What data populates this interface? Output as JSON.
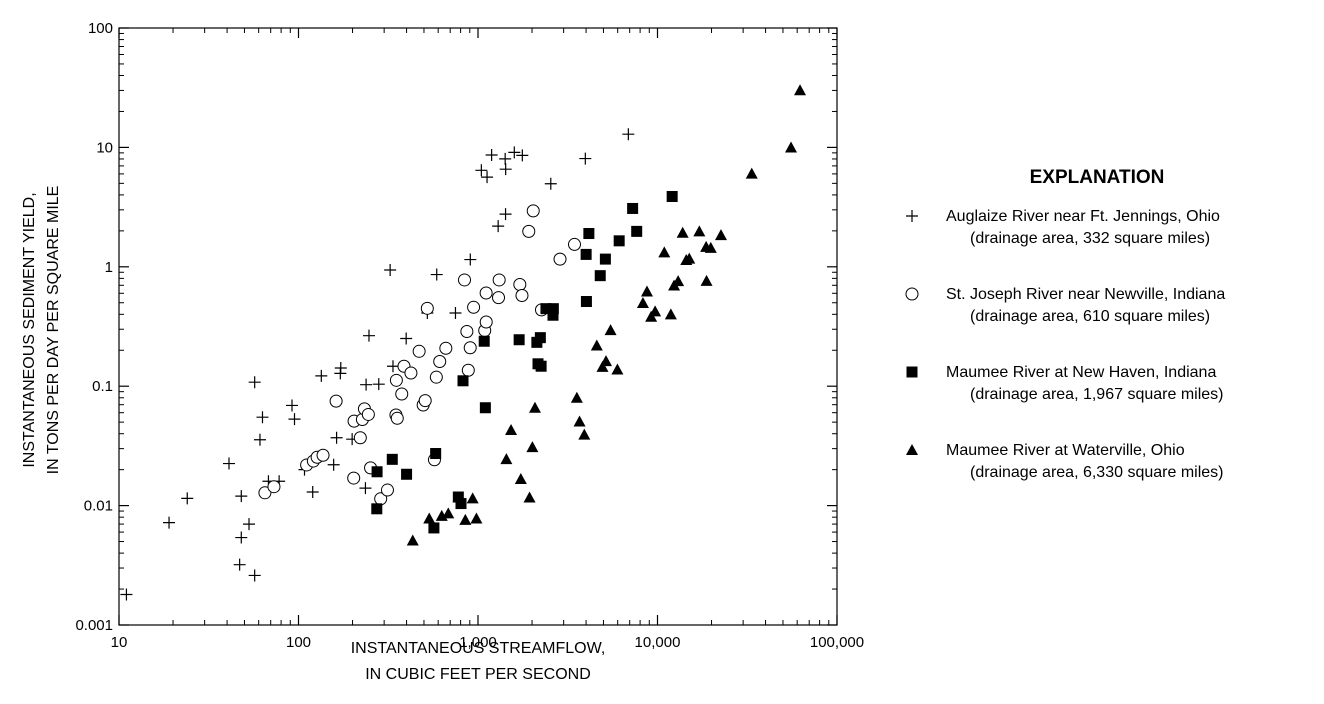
{
  "chart_data": {
    "type": "scatter",
    "xscale": "log",
    "yscale": "log",
    "xlim": [
      10,
      100000
    ],
    "ylim": [
      0.001,
      100
    ],
    "grid": false,
    "xlabel": [
      "INSTANTANEOUS STREAMFLOW,",
      "IN CUBIC FEET PER SECOND"
    ],
    "ylabel": [
      "INSTANTANEOUS SEDIMENT YIELD,",
      "IN TONS PER DAY PER SQUARE MILE"
    ],
    "xticks": [
      10,
      100,
      1000,
      10000,
      100000
    ],
    "xtick_labels": [
      "10",
      "100",
      "1,000",
      "10,000",
      "100,000"
    ],
    "yticks": [
      0.001,
      0.01,
      0.1,
      1,
      10,
      100
    ],
    "ytick_labels": [
      "0.001",
      "0.01",
      "0.1",
      "1",
      "10",
      "100"
    ],
    "legend_title": "EXPLANATION",
    "legend_position": "right",
    "series": [
      {
        "name": "Auglaize River near Ft. Jennings, Ohio",
        "subtitle": "(drainage area, 332 square miles)",
        "marker": "plus",
        "points": [
          [
            11,
            0.0018
          ],
          [
            19,
            0.0072
          ],
          [
            24,
            0.0115
          ],
          [
            41,
            0.0225
          ],
          [
            47,
            0.0032
          ],
          [
            48,
            0.0054
          ],
          [
            48,
            0.012
          ],
          [
            53,
            0.007
          ],
          [
            57,
            0.0026
          ],
          [
            57,
            0.108
          ],
          [
            61,
            0.0356
          ],
          [
            63,
            0.055
          ],
          [
            68,
            0.016
          ],
          [
            78,
            0.016
          ],
          [
            92,
            0.069
          ],
          [
            95,
            0.053
          ],
          [
            108,
            0.02
          ],
          [
            120,
            0.013
          ],
          [
            134,
            0.122
          ],
          [
            157,
            0.022
          ],
          [
            163,
            0.037
          ],
          [
            171,
            0.128
          ],
          [
            172,
            0.142
          ],
          [
            199,
            0.036
          ],
          [
            236,
            0.014
          ],
          [
            238,
            0.103
          ],
          [
            247,
            0.265
          ],
          [
            280,
            0.104
          ],
          [
            324,
            0.94
          ],
          [
            336,
            0.147
          ],
          [
            352,
            0.054
          ],
          [
            398,
            0.251
          ],
          [
            522,
            0.41
          ],
          [
            589,
            0.861
          ],
          [
            749,
            0.41
          ],
          [
            906,
            1.15
          ],
          [
            1044,
            6.43
          ],
          [
            1123,
            5.64
          ],
          [
            1191,
            8.64
          ],
          [
            1295,
            2.19
          ],
          [
            1417,
            8.01
          ],
          [
            1424,
            2.76
          ],
          [
            1426,
            6.57
          ],
          [
            1593,
            9.09
          ],
          [
            1766,
            8.58
          ],
          [
            2544,
            4.96
          ],
          [
            3962,
            8.06
          ],
          [
            6880,
            12.9
          ]
        ]
      },
      {
        "name": "St. Joseph River near Newville, Indiana",
        "subtitle": "(drainage area, 610 square miles)",
        "marker": "circle",
        "points": [
          [
            65,
            0.0128
          ],
          [
            73,
            0.0144
          ],
          [
            111,
            0.0219
          ],
          [
            121,
            0.0236
          ],
          [
            127,
            0.0254
          ],
          [
            137,
            0.0264
          ],
          [
            162,
            0.075
          ],
          [
            203,
            0.017
          ],
          [
            204,
            0.051
          ],
          [
            221,
            0.037
          ],
          [
            227,
            0.0526
          ],
          [
            233,
            0.0646
          ],
          [
            245,
            0.058
          ],
          [
            252,
            0.0207
          ],
          [
            287,
            0.0114
          ],
          [
            313,
            0.0135
          ],
          [
            349,
            0.0574
          ],
          [
            351,
            0.112
          ],
          [
            355,
            0.0539
          ],
          [
            376,
            0.086
          ],
          [
            387,
            0.147
          ],
          [
            423,
            0.129
          ],
          [
            470,
            0.196
          ],
          [
            495,
            0.0696
          ],
          [
            508,
            0.0757
          ],
          [
            522,
            0.449
          ],
          [
            572,
            0.0242
          ],
          [
            586,
            0.119
          ],
          [
            612,
            0.161
          ],
          [
            662,
            0.208
          ],
          [
            841,
            0.776
          ],
          [
            867,
            0.287
          ],
          [
            883,
            0.136
          ],
          [
            905,
            0.21
          ],
          [
            945,
            0.458
          ],
          [
            1090,
            0.293
          ],
          [
            1111,
            0.345
          ],
          [
            1110,
            0.603
          ],
          [
            1301,
            0.552
          ],
          [
            1312,
            0.776
          ],
          [
            1710,
            0.711
          ],
          [
            1758,
            0.575
          ],
          [
            1918,
            1.98
          ],
          [
            2031,
            2.94
          ],
          [
            2258,
            0.436
          ],
          [
            2864,
            1.16
          ],
          [
            3448,
            1.54
          ]
        ]
      },
      {
        "name": "Maumee River at New Haven, Indiana",
        "subtitle": "(drainage area, 1,967 square miles)",
        "marker": "square",
        "points": [
          [
            273,
            0.0094
          ],
          [
            274,
            0.0192
          ],
          [
            333,
            0.0244
          ],
          [
            400,
            0.0183
          ],
          [
            568,
            0.0065
          ],
          [
            581,
            0.0273
          ],
          [
            777,
            0.0118
          ],
          [
            804,
            0.0104
          ],
          [
            825,
            0.111
          ],
          [
            1083,
            0.238
          ],
          [
            1099,
            0.066
          ],
          [
            1695,
            0.245
          ],
          [
            2128,
            0.233
          ],
          [
            2159,
            0.154
          ],
          [
            2225,
            0.255
          ],
          [
            2247,
            0.147
          ],
          [
            2391,
            0.446
          ],
          [
            2629,
            0.446
          ],
          [
            2617,
            0.393
          ],
          [
            4018,
            0.512
          ],
          [
            4003,
            1.27
          ],
          [
            4146,
            1.9
          ],
          [
            4797,
            0.843
          ],
          [
            5124,
            1.16
          ],
          [
            6116,
            1.65
          ],
          [
            7268,
            3.08
          ],
          [
            7658,
            1.98
          ],
          [
            12070,
            3.88
          ]
        ]
      },
      {
        "name": "Maumee River at Waterville, Ohio",
        "subtitle": "(drainage area, 6,330 square miles)",
        "marker": "triangle",
        "points": [
          [
            433,
            0.0051
          ],
          [
            535,
            0.0078
          ],
          [
            628,
            0.0082
          ],
          [
            683,
            0.0086
          ],
          [
            779,
            0.0117
          ],
          [
            850,
            0.0076
          ],
          [
            934,
            0.0115
          ],
          [
            980,
            0.0078
          ],
          [
            1439,
            0.0245
          ],
          [
            1528,
            0.043
          ],
          [
            1732,
            0.0167
          ],
          [
            1937,
            0.0117
          ],
          [
            2009,
            0.0309
          ],
          [
            2077,
            0.066
          ],
          [
            3554,
            0.08
          ],
          [
            3679,
            0.0506
          ],
          [
            3910,
            0.0393
          ],
          [
            4591,
            0.219
          ],
          [
            4938,
            0.145
          ],
          [
            5165,
            0.162
          ],
          [
            5478,
            0.295
          ],
          [
            5979,
            0.138
          ],
          [
            8298,
            0.497
          ],
          [
            8738,
            0.621
          ],
          [
            9217,
            0.382
          ],
          [
            9699,
            0.423
          ],
          [
            10910,
            1.32
          ],
          [
            11870,
            0.4
          ],
          [
            12370,
            0.698
          ],
          [
            13030,
            0.758
          ],
          [
            13810,
            1.93
          ],
          [
            14460,
            1.14
          ],
          [
            15030,
            1.17
          ],
          [
            17100,
            1.98
          ],
          [
            18660,
            1.47
          ],
          [
            18760,
            0.762
          ],
          [
            19810,
            1.44
          ],
          [
            22580,
            1.84
          ],
          [
            33500,
            6.03
          ],
          [
            55450,
            9.97
          ],
          [
            62230,
            30.1
          ]
        ]
      }
    ]
  }
}
